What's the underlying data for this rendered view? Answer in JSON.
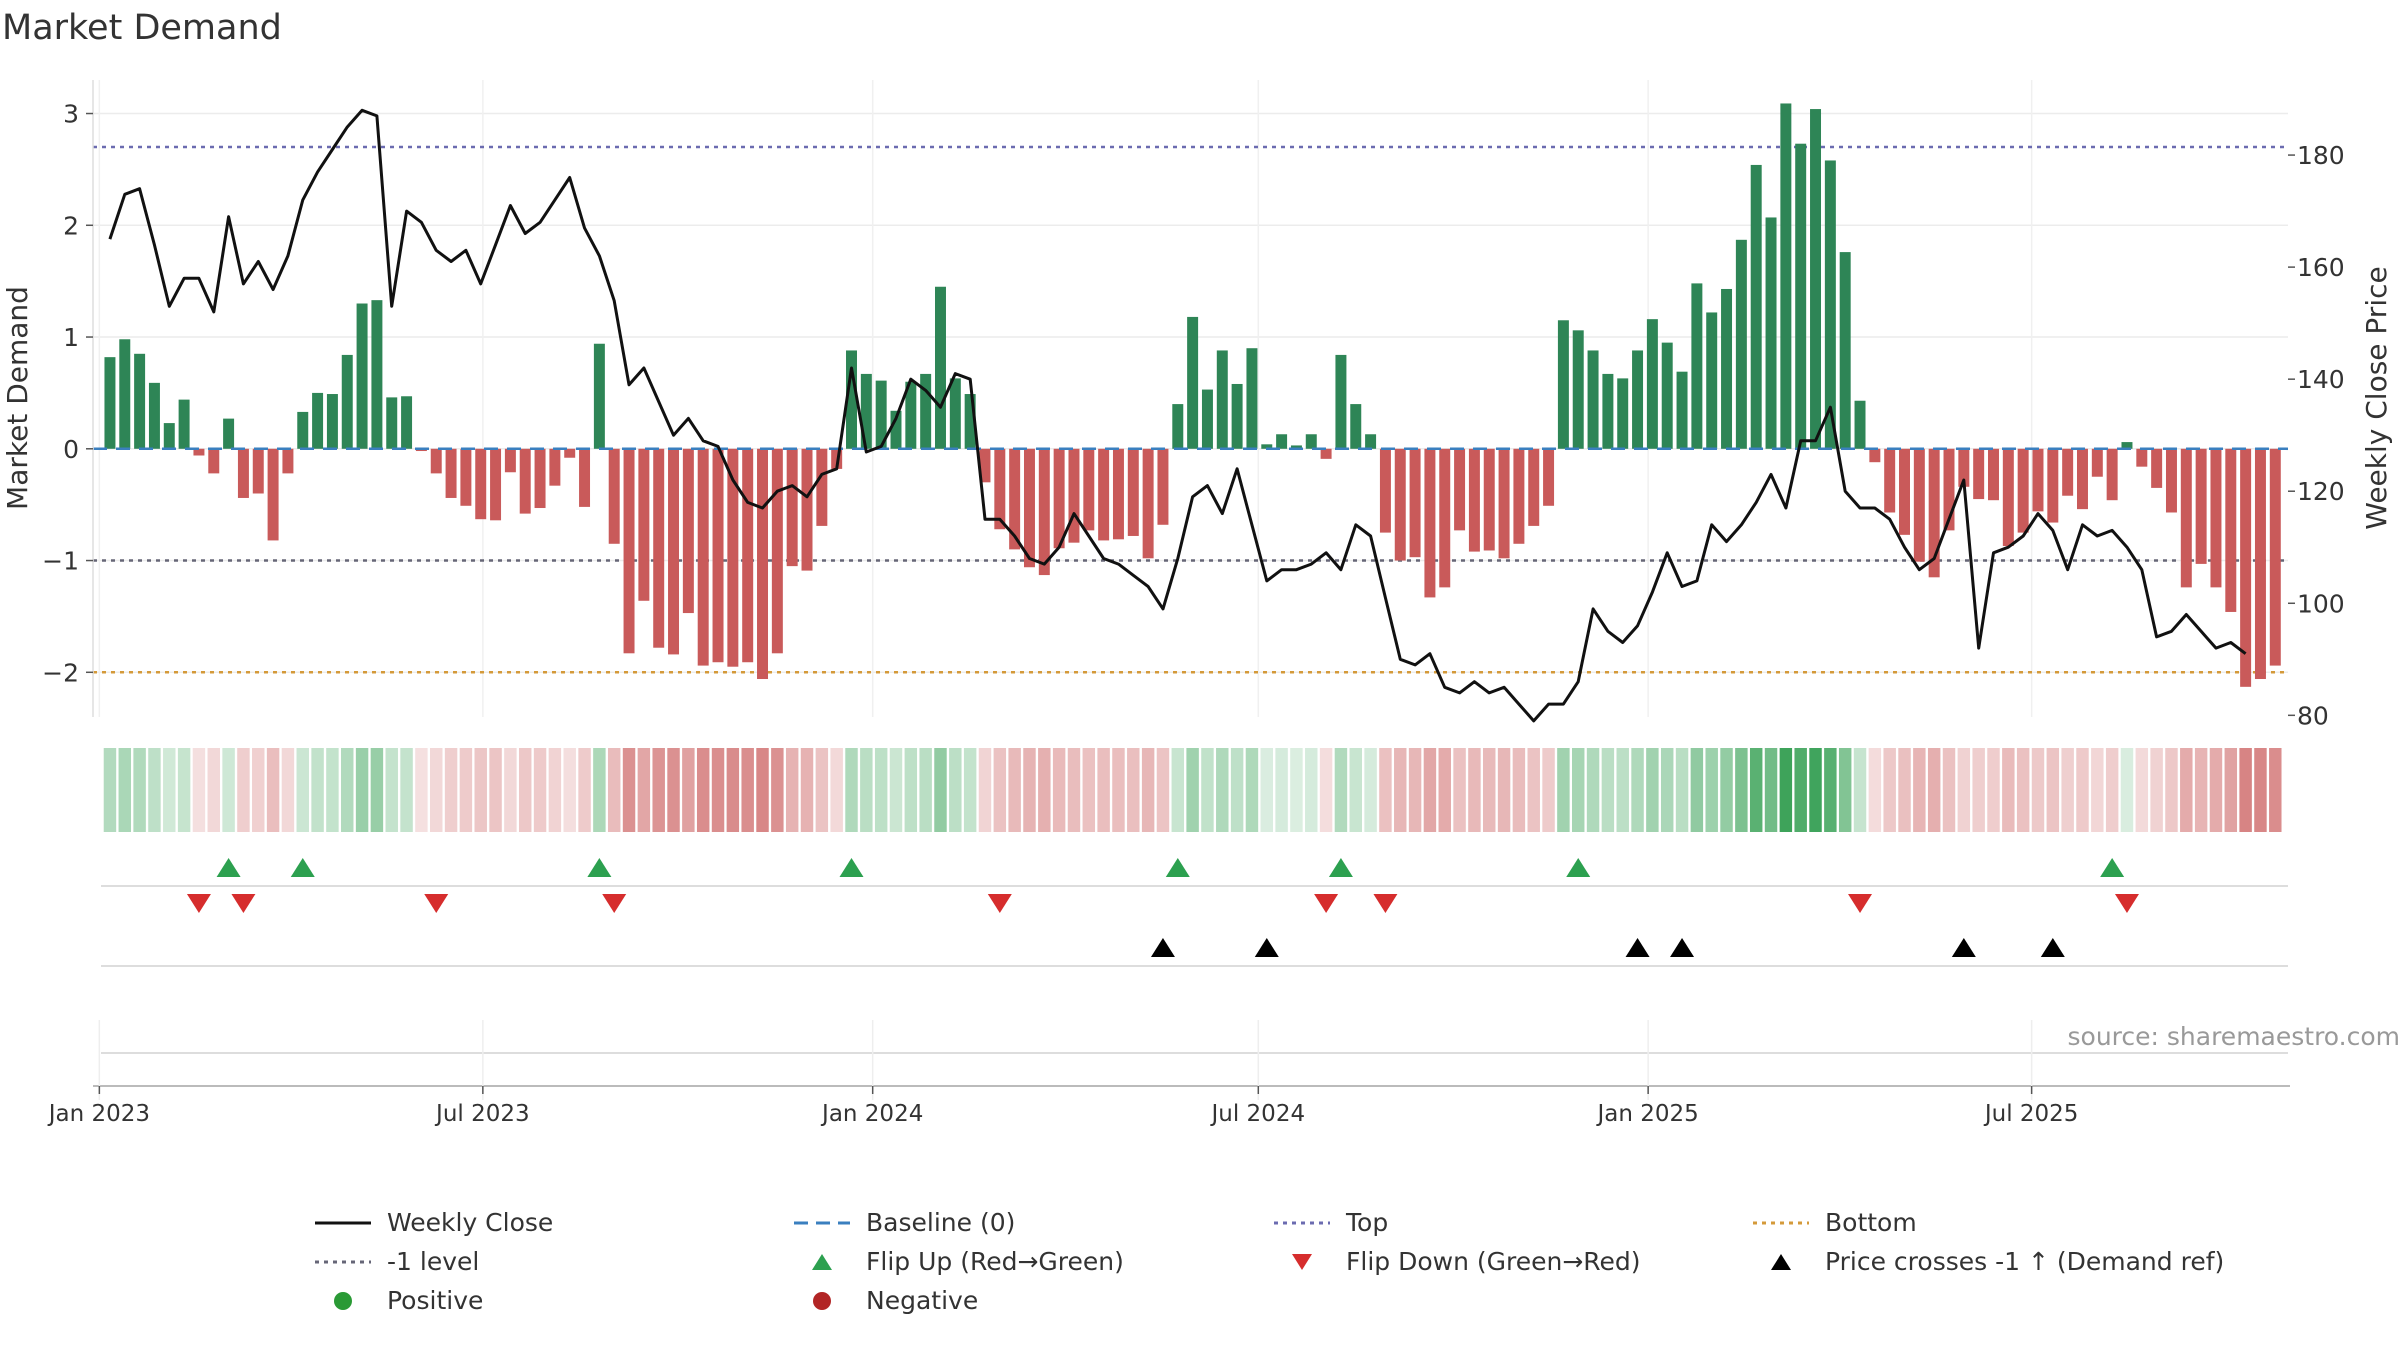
{
  "title": "Market Demand",
  "source": "source: sharemaestro.com",
  "colors": {
    "positive_bar": "#2e8556",
    "negative_bar": "#c95a5a",
    "price_line": "#111111",
    "baseline": "#3a7fbf",
    "top_line": "#6b6bb0",
    "minus1_line": "#666677",
    "bottom_line": "#d49a3a",
    "flip_up": "#2ca04f",
    "flip_down": "#d62d2d",
    "cross": "#000000",
    "pos_dot": "#2a9a35",
    "neg_dot": "#b22525"
  },
  "chart_data": {
    "type": "bar",
    "title": "Market Demand",
    "ylabel": "Market Demand",
    "y2label": "Weekly Close Price",
    "ylim": [
      -2.4,
      3.3
    ],
    "y2lim": [
      79.7,
      193.4
    ],
    "yticks": [
      3,
      2,
      1,
      0,
      -1,
      -2
    ],
    "ytick_labels": [
      "3",
      "2",
      "1",
      "0",
      "−1",
      "−2"
    ],
    "y2ticks": [
      180,
      160,
      140,
      120,
      100,
      80
    ],
    "y2tick_labels": [
      "180",
      "160",
      "140",
      "120",
      "100",
      "80"
    ],
    "x_start": "2023-01-06",
    "x_step_weeks": 1,
    "xlim": [
      "2022-12-29",
      "2025-10-30"
    ],
    "xticks": [
      {
        "date": "2023-01-01",
        "label": "Jan 2023"
      },
      {
        "date": "2023-07-01",
        "label": "Jul 2023"
      },
      {
        "date": "2024-01-01",
        "label": "Jan 2024"
      },
      {
        "date": "2024-07-01",
        "label": "Jul 2024"
      },
      {
        "date": "2025-01-01",
        "label": "Jan 2025"
      },
      {
        "date": "2025-07-01",
        "label": "Jul 2025"
      }
    ],
    "reference_lines": {
      "top": 2.7,
      "minus1": -1.0,
      "bottom": -2.0,
      "baseline": 0
    },
    "series": [
      {
        "name": "Market Demand",
        "type": "bar",
        "values": [
          0.82,
          0.98,
          0.85,
          0.59,
          0.23,
          0.44,
          -0.06,
          -0.22,
          0.27,
          -0.44,
          -0.4,
          -0.82,
          -0.22,
          0.33,
          0.5,
          0.49,
          0.84,
          1.3,
          1.33,
          0.46,
          0.47,
          -0.02,
          -0.22,
          -0.44,
          -0.51,
          -0.63,
          -0.64,
          -0.21,
          -0.58,
          -0.53,
          -0.33,
          -0.08,
          -0.52,
          0.94,
          -0.85,
          -1.83,
          -1.36,
          -1.78,
          -1.84,
          -1.47,
          -1.94,
          -1.91,
          -1.95,
          -1.91,
          -2.06,
          -1.83,
          -1.05,
          -1.09,
          -0.69,
          -0.18,
          0.88,
          0.67,
          0.61,
          0.34,
          0.6,
          0.67,
          1.45,
          0.63,
          0.49,
          -0.3,
          -0.72,
          -0.9,
          -1.06,
          -1.13,
          -0.89,
          -0.84,
          -0.73,
          -0.82,
          -0.81,
          -0.78,
          -0.98,
          -0.68,
          0.4,
          1.18,
          0.53,
          0.88,
          0.58,
          0.9,
          0.04,
          0.13,
          0.03,
          0.13,
          -0.09,
          0.84,
          0.4,
          0.13,
          -0.75,
          -1.0,
          -0.97,
          -1.33,
          -1.24,
          -0.73,
          -0.92,
          -0.91,
          -0.98,
          -0.85,
          -0.69,
          -0.51,
          1.15,
          1.06,
          0.88,
          0.67,
          0.63,
          0.88,
          1.16,
          0.95,
          0.69,
          1.48,
          1.22,
          1.43,
          1.87,
          2.54,
          2.07,
          3.09,
          2.73,
          3.04,
          2.58,
          1.76,
          0.43,
          -0.12,
          -0.57,
          -0.77,
          -1.01,
          -1.15,
          -0.73,
          -0.34,
          -0.45,
          -0.46,
          -0.87,
          -0.75,
          -0.56,
          -0.66,
          -0.42,
          -0.54,
          -0.25,
          -0.46,
          0.06,
          -0.16,
          -0.35,
          -0.57,
          -1.24,
          -1.03,
          -1.24,
          -1.46,
          -2.13,
          -2.06,
          -1.94
        ]
      },
      {
        "name": "Weekly Close",
        "type": "line",
        "axis": "y2",
        "values": [
          165,
          173,
          174,
          164,
          153,
          158,
          158,
          152,
          169,
          157,
          161,
          156,
          162,
          172,
          177,
          181,
          185,
          188,
          187,
          153,
          170,
          168,
          163,
          161,
          163,
          157,
          164,
          171,
          166,
          168,
          172,
          176,
          167,
          162,
          154,
          139,
          142,
          136,
          130,
          133,
          129,
          128,
          122,
          118,
          117,
          120,
          121,
          119,
          123,
          124,
          142,
          127,
          128,
          133,
          140,
          138,
          135,
          141,
          140,
          115,
          115,
          112,
          108,
          107,
          110,
          116,
          112,
          108,
          107,
          105,
          103,
          99,
          108,
          119,
          121,
          116,
          124,
          114,
          104,
          106,
          106,
          107,
          109,
          106,
          114,
          112,
          101,
          90,
          89,
          91,
          85,
          84,
          86,
          84,
          85,
          82,
          79,
          82,
          82,
          86,
          99,
          95,
          93,
          96,
          102,
          109,
          103,
          104,
          114,
          111,
          114,
          118,
          123,
          117,
          129,
          129,
          135,
          120,
          117,
          117,
          115,
          110,
          106,
          108,
          115,
          122,
          92,
          109,
          110,
          112,
          116,
          113,
          106,
          114,
          112,
          113,
          110,
          106,
          94,
          95,
          98,
          95,
          92,
          93,
          91
        ]
      }
    ],
    "flip_up_weeks": [
      8,
      13,
      33,
      50,
      72,
      83,
      99,
      135
    ],
    "flip_down_weeks": [
      6,
      9,
      22,
      34,
      60,
      82,
      86,
      118,
      136
    ],
    "cross_weeks": [
      71,
      78,
      103,
      106,
      125,
      131
    ]
  },
  "legend": [
    {
      "label": "Weekly Close",
      "icon": "solid-line",
      "color": "#111111"
    },
    {
      "label": "Baseline (0)",
      "icon": "dashed-line",
      "color": "#3a7fbf"
    },
    {
      "label": "Top",
      "icon": "dotted-line",
      "color": "#6b6bb0"
    },
    {
      "label": "Bottom",
      "icon": "dotted-line",
      "color": "#d49a3a"
    },
    {
      "label": "-1 level",
      "icon": "dotted-line",
      "color": "#666677"
    },
    {
      "label": "Flip Up (Red→Green)",
      "icon": "triangle-up",
      "color": "#2ca04f"
    },
    {
      "label": "Flip Down (Green→Red)",
      "icon": "triangle-down",
      "color": "#d62d2d"
    },
    {
      "label": "Price crosses -1 ↑ (Demand ref)",
      "icon": "triangle-up",
      "color": "#000000"
    },
    {
      "label": "Positive",
      "icon": "circle",
      "color": "#2a9a35"
    },
    {
      "label": "Negative",
      "icon": "circle",
      "color": "#b22525"
    }
  ]
}
